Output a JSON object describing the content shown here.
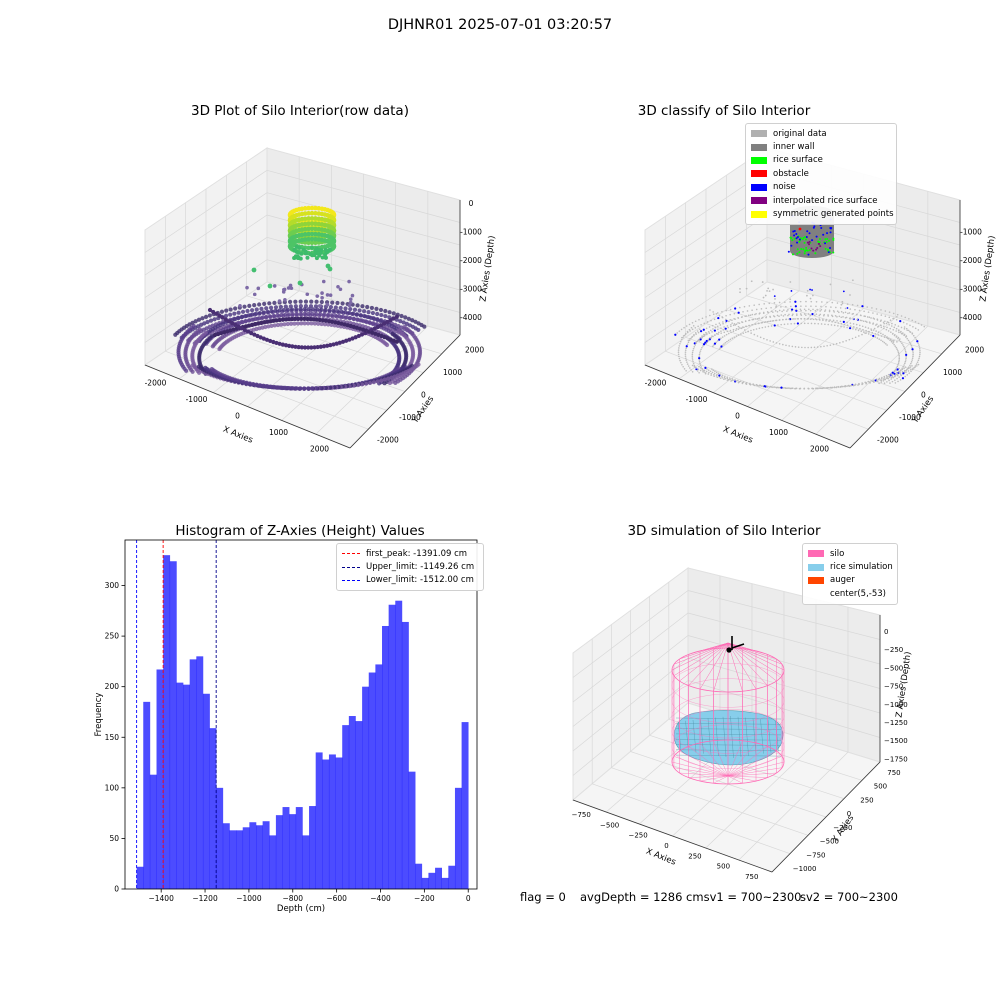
{
  "suptitle": "DJHNR01 2025-07-01 03:20:57",
  "colors": {
    "hist_bar": "#0000ff",
    "first_peak": "#ff0000",
    "upper_limit": "#00008b",
    "lower_limit": "#0000ff",
    "original_data": "#b0b0b0",
    "inner_wall": "#808080",
    "rice_surface": "#00ff00",
    "obstacle": "#ff0000",
    "noise": "#0000ff",
    "interpolated": "#800080",
    "symmetric": "#ffff00",
    "silo": "#ff69b4",
    "rice_sim": "#87ceeb",
    "auger": "#ff4500"
  },
  "panel1": {
    "title": "3D Plot of Silo Interior(row data)",
    "xlabel": "X Axies",
    "ylabel": "Y Axies",
    "zlabel": "Z Axies (Depth)",
    "xticks": [
      "-2000",
      "-1000",
      "0",
      "1000",
      "2000"
    ],
    "yticks": [
      "-2000",
      "-1000",
      "0",
      "1000",
      "2000"
    ],
    "zticks": [
      "0",
      "-1000",
      "-2000",
      "-3000",
      "-4000"
    ]
  },
  "panel2": {
    "title": "3D classify of Silo Interior",
    "xlabel": "X Axies",
    "ylabel": "Y Axies",
    "zlabel": "Z Axies (Depth)",
    "xticks": [
      "-2000",
      "-1000",
      "0",
      "1000",
      "2000"
    ],
    "yticks": [
      "-2000",
      "-1000",
      "0",
      "1000",
      "2000"
    ],
    "zticks": [
      "-1000",
      "-2000",
      "-3000",
      "-4000"
    ],
    "legend": [
      {
        "label": "original data",
        "color": "#b0b0b0"
      },
      {
        "label": "inner wall",
        "color": "#808080"
      },
      {
        "label": "rice surface",
        "color": "#00ff00"
      },
      {
        "label": "obstacle",
        "color": "#ff0000"
      },
      {
        "label": "noise",
        "color": "#0000ff"
      },
      {
        "label": "interpolated rice surface",
        "color": "#800080"
      },
      {
        "label": "symmetric generated points",
        "color": "#ffff00"
      }
    ]
  },
  "panel4": {
    "title": "3D simulation of Silo Interior",
    "xlabel": "X Axies",
    "ylabel": "Y Axies",
    "zlabel": "Z Axies (Depth)",
    "xticks": [
      "-750",
      "-500",
      "-250",
      "0",
      "250",
      "500",
      "750"
    ],
    "yticks": [
      "-1000",
      "-750",
      "-500",
      "-250",
      "0",
      "250",
      "500",
      "750"
    ],
    "zticks": [
      "0",
      "-250",
      "-500",
      "-750",
      "-1000",
      "-1250",
      "-1500",
      "-1750"
    ],
    "legend": [
      {
        "label": "silo",
        "color": "#ff69b4"
      },
      {
        "label": "rice simulation",
        "color": "#87ceeb"
      },
      {
        "label": "auger",
        "color": "#ff4500"
      },
      {
        "label": "center(5,-53)",
        "color": "#ffffff"
      }
    ]
  },
  "status": {
    "flag": "flag = 0",
    "avg": "avgDepth = 1286 cmsv1 = 700~2300",
    "sv2": "sv2 = 700~2300"
  },
  "chart_data": [
    {
      "type": "scatter",
      "title": "3D Plot of Silo Interior(row data)",
      "xlabel": "X Axies",
      "ylabel": "Y Axies",
      "zlabel": "Z Axies (Depth)",
      "xlim": [
        -2500,
        2500
      ],
      "ylim": [
        -2500,
        2500
      ],
      "zlim": [
        -4500,
        0
      ],
      "grid": true
    },
    {
      "type": "scatter",
      "title": "3D classify of Silo Interior",
      "xlabel": "X Axies",
      "ylabel": "Y Axies",
      "zlabel": "Z Axies (Depth)",
      "xlim": [
        -2500,
        2500
      ],
      "ylim": [
        -2500,
        2500
      ],
      "zlim": [
        -4500,
        0
      ],
      "legend_position": "top-right",
      "series": [
        {
          "name": "original data"
        },
        {
          "name": "inner wall"
        },
        {
          "name": "rice surface"
        },
        {
          "name": "obstacle"
        },
        {
          "name": "noise"
        },
        {
          "name": "interpolated rice surface"
        },
        {
          "name": "symmetric generated points"
        }
      ]
    },
    {
      "type": "bar",
      "title": "Histogram of Z-Axies (Height) Values",
      "xlabel": "Depth (cm)",
      "ylabel": "Frequency",
      "xlim": [
        -1565,
        40
      ],
      "ylim": [
        0,
        345
      ],
      "xticks": [
        -1400,
        -1200,
        -1000,
        -800,
        -600,
        -400,
        -200,
        0
      ],
      "yticks": [
        0,
        50,
        100,
        150,
        200,
        250,
        300
      ],
      "bin_start": -1512.0,
      "bin_width": 30.24,
      "values": [
        22,
        185,
        113,
        217,
        330,
        324,
        204,
        202,
        227,
        230,
        193,
        159,
        100,
        65,
        58,
        58,
        61,
        66,
        63,
        67,
        53,
        73,
        81,
        74,
        81,
        53,
        82,
        135,
        128,
        133,
        130,
        162,
        171,
        166,
        200,
        214,
        222,
        260,
        281,
        285,
        264,
        116,
        25,
        11,
        16,
        21,
        11,
        23,
        100,
        165
      ],
      "vlines": [
        {
          "name": "first_peak: -1391.09 cm",
          "x": -1391.09,
          "color": "#ff0000"
        },
        {
          "name": "Upper_limit: -1149.26 cm",
          "x": -1149.26,
          "color": "#00008b"
        },
        {
          "name": "Lower_limit: -1512.00 cm",
          "x": -1512.0,
          "color": "#0000ff"
        }
      ],
      "legend_position": "top-right",
      "grid": false
    },
    {
      "type": "other",
      "title": "3D simulation of Silo Interior",
      "xlabel": "X Axies",
      "ylabel": "Y Axies",
      "zlabel": "Z Axies (Depth)",
      "xlim": [
        -900,
        900
      ],
      "ylim": [
        -1000,
        900
      ],
      "zlim": [
        -1800,
        100
      ],
      "legend_position": "top-right",
      "series": [
        {
          "name": "silo"
        },
        {
          "name": "rice simulation"
        },
        {
          "name": "auger"
        },
        {
          "name": "center(5,-53)"
        }
      ]
    }
  ]
}
